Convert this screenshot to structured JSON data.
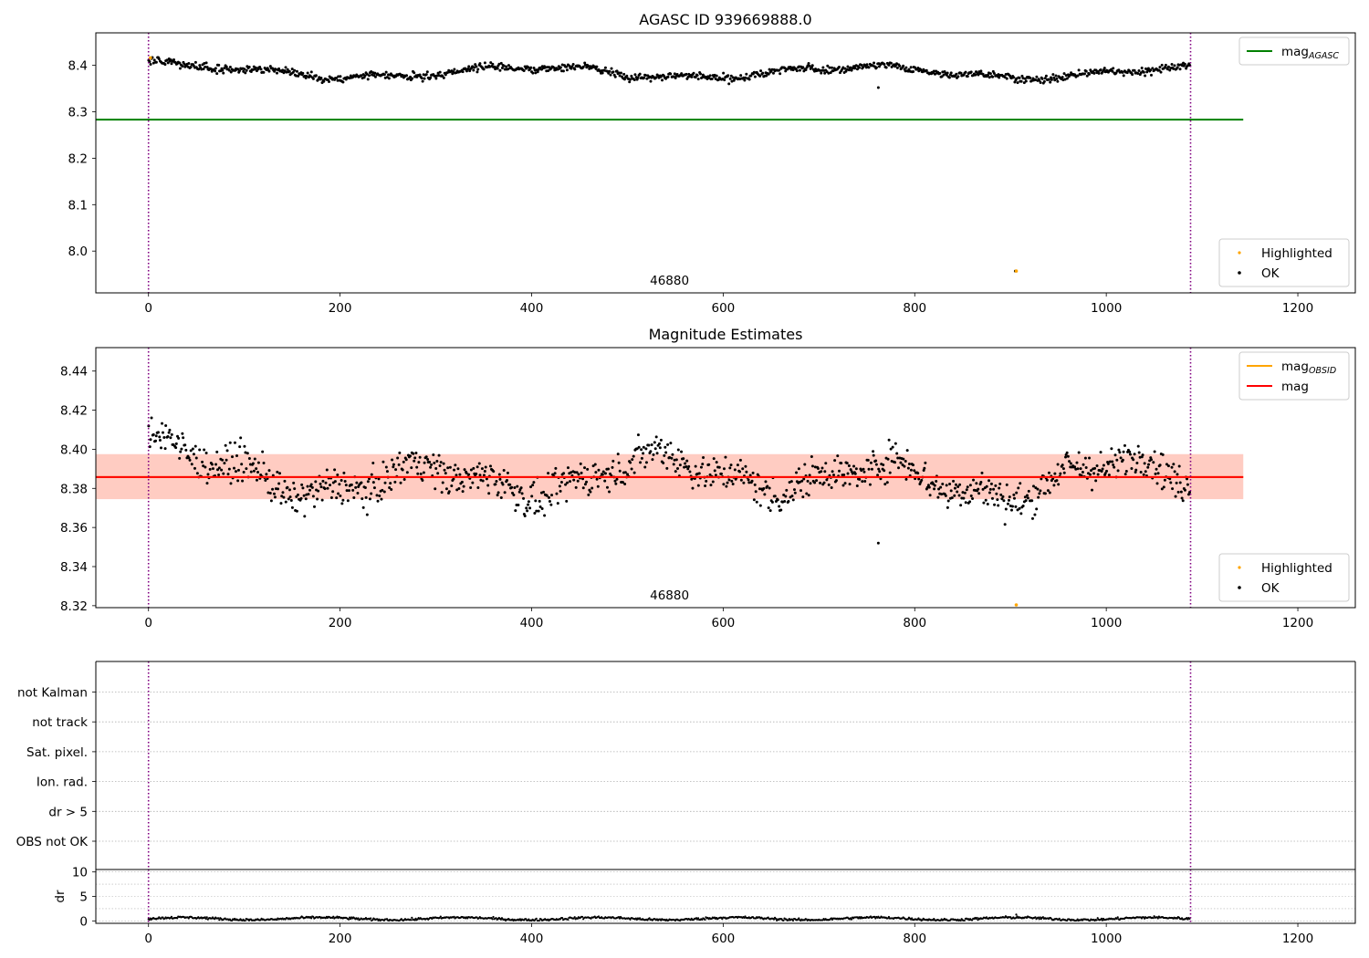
{
  "figure": {
    "background": "#ffffff"
  },
  "colors": {
    "ok_points": "#000000",
    "highlighted_points": "#ffa500",
    "mag_agasc_line": "#008000",
    "mag_obsid_line": "#ffa500",
    "mag_line": "#ff0000",
    "obs_band": "#ffc0cb",
    "mag_band": "#ffa07a",
    "obs_boundary": "#800080",
    "grid": "#b0b0b0"
  },
  "chart_data": [
    {
      "id": "top",
      "type": "scatter",
      "title": "AGASC ID 939669888.0",
      "xlim": [
        -55,
        1260
      ],
      "ylim": [
        7.91,
        8.47
      ],
      "xticks": [
        0,
        200,
        400,
        600,
        800,
        1000,
        1200
      ],
      "yticks": [
        8.0,
        8.1,
        8.2,
        8.3,
        8.4
      ],
      "ytick_labels": [
        "8.0",
        "8.1",
        "8.2",
        "8.3",
        "8.4"
      ],
      "obs_boundaries": [
        0,
        1088
      ],
      "obsid_label": {
        "text": "46880",
        "x": 544
      },
      "hlines": [
        {
          "name": "mag_AGASC",
          "value": 8.283,
          "x": [
            -55,
            1143
          ],
          "color": "#008000"
        }
      ],
      "series": [
        {
          "name": "OK",
          "n": 1088,
          "trend": "slow",
          "base": 8.385,
          "noise": 0.004,
          "color": "#000000"
        },
        {
          "name": "Highlighted",
          "points": [
            [
              2,
              8.416
            ],
            [
              906,
              7.957
            ]
          ],
          "color": "#ffa500"
        }
      ],
      "outliers": [
        [
          762,
          8.352
        ],
        [
          905,
          7.957
        ]
      ],
      "legends": [
        {
          "position": "upper right",
          "entries": [
            {
              "label": "mag",
              "sub": "AGASC",
              "kind": "line",
              "color": "#008000"
            }
          ]
        },
        {
          "position": "lower right",
          "entries": [
            {
              "label": "Highlighted",
              "kind": "dot",
              "color": "#ffa500"
            },
            {
              "label": "OK",
              "kind": "dot",
              "color": "#000000"
            }
          ]
        }
      ]
    },
    {
      "id": "middle",
      "type": "scatter",
      "title": "Magnitude Estimates",
      "xlim": [
        -55,
        1260
      ],
      "ylim": [
        8.319,
        8.452
      ],
      "xticks": [
        0,
        200,
        400,
        600,
        800,
        1000,
        1200
      ],
      "yticks": [
        8.32,
        8.34,
        8.36,
        8.38,
        8.4,
        8.42,
        8.44
      ],
      "ytick_labels": [
        "8.32",
        "8.34",
        "8.36",
        "8.38",
        "8.40",
        "8.42",
        "8.44"
      ],
      "obs_boundaries": [
        0,
        1088
      ],
      "obsid_label": {
        "text": "46880",
        "x": 544
      },
      "bands": [
        {
          "name": "obs",
          "y": [
            8.3745,
            8.3975
          ],
          "x": [
            -55,
            1143
          ],
          "color": "#ffc0cb"
        },
        {
          "name": "mag",
          "y": [
            8.3745,
            8.3975
          ],
          "x": [
            -55,
            1143
          ],
          "color": "#ffa07a"
        }
      ],
      "hlines": [
        {
          "name": "mag_OBSID",
          "value": 8.3858,
          "x": [
            -55,
            1143
          ],
          "color": "#ffa500"
        },
        {
          "name": "mag",
          "value": 8.3858,
          "x": [
            -55,
            1143
          ],
          "color": "#ff0000"
        }
      ],
      "series": [
        {
          "name": "OK",
          "n": 1088,
          "trend": "detail",
          "base": 8.3858,
          "noise": 0.0045,
          "color": "#000000"
        },
        {
          "name": "Highlighted",
          "points": [
            [
              906,
              8.32
            ]
          ],
          "color": "#ffa500"
        }
      ],
      "outliers": [
        [
          762,
          8.352
        ]
      ],
      "legends": [
        {
          "position": "upper right",
          "entries": [
            {
              "label": "mag",
              "sub": "OBSID",
              "kind": "line",
              "color": "#ffa500"
            },
            {
              "label": "mag",
              "kind": "line",
              "color": "#ff0000"
            }
          ]
        },
        {
          "position": "lower right",
          "entries": [
            {
              "label": "Highlighted",
              "kind": "dot",
              "color": "#ffa500"
            },
            {
              "label": "OK",
              "kind": "dot",
              "color": "#000000"
            }
          ]
        }
      ]
    },
    {
      "id": "flags",
      "type": "scatter",
      "xlim": [
        -55,
        1260
      ],
      "categories": [
        "OBS not OK",
        "dr > 5",
        "Ion. rad.",
        "Sat. pixel.",
        "not track",
        "not Kalman"
      ],
      "obs_boundaries": [
        0,
        1088
      ],
      "series": []
    },
    {
      "id": "dr",
      "type": "scatter",
      "xlim": [
        -55,
        1260
      ],
      "ylim": [
        -0.5,
        10.5
      ],
      "ylabel": "dr",
      "xticks": [
        0,
        200,
        400,
        600,
        800,
        1000,
        1200
      ],
      "yticks": [
        0,
        5,
        10
      ],
      "obs_boundaries": [
        0,
        1088
      ],
      "series": [
        {
          "name": "dr",
          "n": 1088,
          "range": [
            0.1,
            0.9
          ],
          "color": "#000000"
        }
      ],
      "outliers": [
        [
          906,
          1.3
        ]
      ]
    }
  ]
}
